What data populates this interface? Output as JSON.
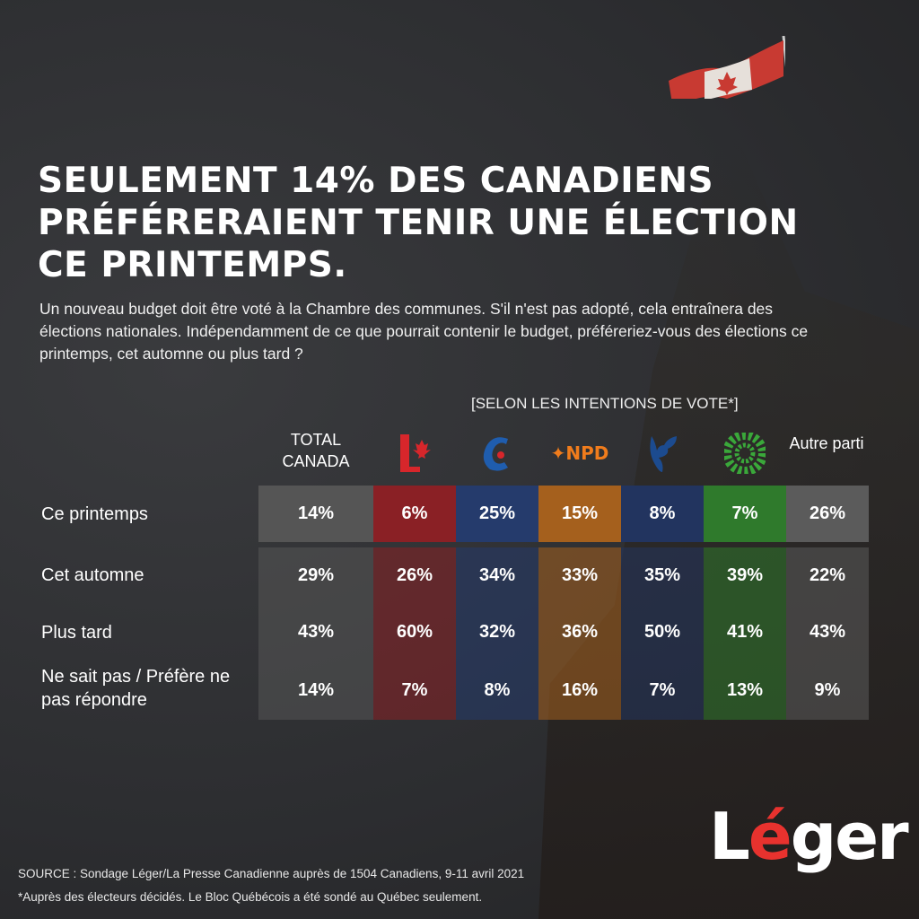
{
  "title": "SEULEMENT 14% DES CANADIENS PRÉFÉRERAIENT TENIR UNE ÉLECTION CE PRINTEMPS.",
  "question": "Un nouveau budget doit être voté à la Chambre des communes. S'il n'est pas adopté, cela entraînera des élections nationales. Indépendamment de ce que pourrait contenir le budget, préféreriez-vous des élections ce printemps, cet automne ou plus tard ?",
  "group_label": "[SELON LES INTENTIONS DE VOTE*]",
  "chart_data": {
    "type": "table",
    "columns": [
      {
        "label": "TOTAL CANADA",
        "color": "#555555"
      },
      {
        "label": "",
        "logo": "liberal-logo",
        "color": "#8a2025"
      },
      {
        "label": "",
        "logo": "conservative-logo",
        "color": "#253b6c"
      },
      {
        "label": "NPD",
        "logo": "ndp-logo",
        "color": "#a5601d"
      },
      {
        "label": "",
        "logo": "bloc-logo",
        "color": "#22345f"
      },
      {
        "label": "",
        "logo": "green-logo",
        "color": "#2f7a2c"
      },
      {
        "label": "Autre parti",
        "color": "#5b5b5b"
      }
    ],
    "rows": [
      {
        "label": "Ce printemps",
        "values": [
          "14%",
          "6%",
          "25%",
          "15%",
          "8%",
          "7%",
          "26%"
        ]
      },
      {
        "label": "Cet automne",
        "values": [
          "29%",
          "26%",
          "34%",
          "33%",
          "35%",
          "39%",
          "22%"
        ]
      },
      {
        "label": "Plus tard",
        "values": [
          "43%",
          "60%",
          "32%",
          "36%",
          "50%",
          "41%",
          "43%"
        ]
      },
      {
        "label": "Ne sait pas / Préfère ne pas répondre",
        "values": [
          "14%",
          "7%",
          "8%",
          "16%",
          "7%",
          "13%",
          "9%"
        ]
      }
    ]
  },
  "source": "SOURCE : Sondage Léger/La Presse Canadienne auprès de 1504 Canadiens, 9-11 avril 2021",
  "footnote": "*Auprès des électeurs décidés. Le Bloc Québécois a été sondé au Québec seulement.",
  "brand": "Léger"
}
